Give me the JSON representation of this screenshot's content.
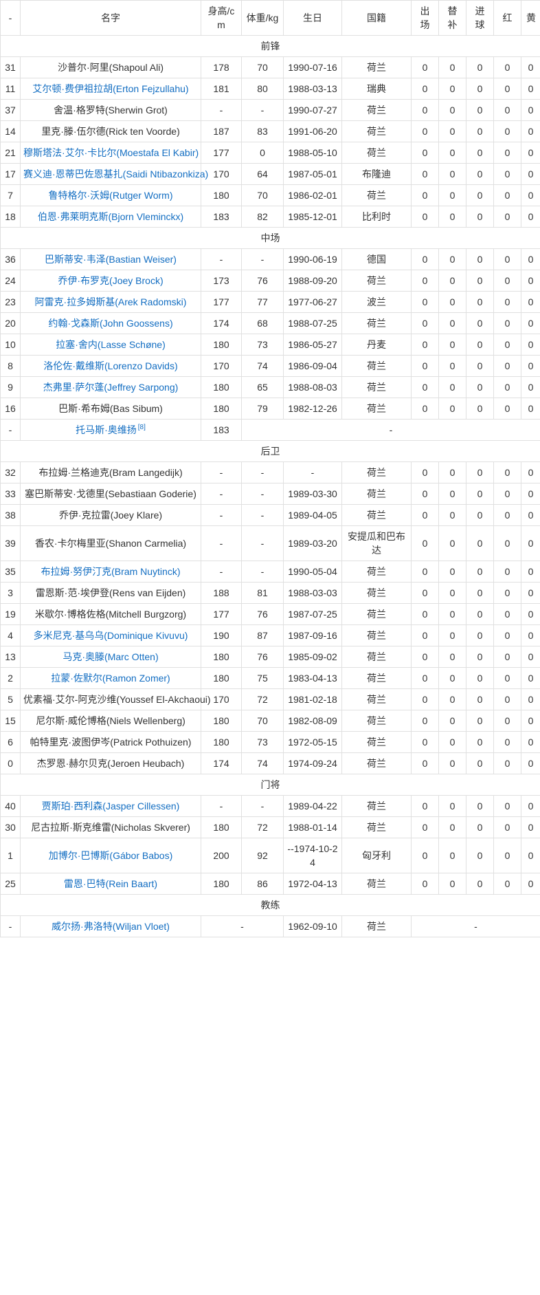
{
  "colors": {
    "link": "#136ec2",
    "text": "#333333",
    "border": "#e0e0e0"
  },
  "table": {
    "columns": [
      "-",
      "名字",
      "身高/cm",
      "体重/kg",
      "生日",
      "国籍",
      "出场",
      "替补",
      "进球",
      "红",
      "黄"
    ],
    "sections": [
      {
        "title": "前锋",
        "players": [
          {
            "num": "31",
            "name": "沙普尔·阿里(Shapoul Ali)",
            "link": false,
            "height": "178",
            "weight": "70",
            "birthday": "1990-07-16",
            "nationality": "荷兰",
            "apps": "0",
            "sub": "0",
            "goals": "0",
            "red": "0",
            "yellow": "0"
          },
          {
            "num": "11",
            "name": "艾尔顿·费伊祖拉胡(Erton Fejzullahu)",
            "link": true,
            "height": "181",
            "weight": "80",
            "birthday": "1988-03-13",
            "nationality": "瑞典",
            "apps": "0",
            "sub": "0",
            "goals": "0",
            "red": "0",
            "yellow": "0"
          },
          {
            "num": "37",
            "name": "舍温·格罗特(Sherwin Grot)",
            "link": false,
            "height": "-",
            "weight": "-",
            "birthday": "1990-07-27",
            "nationality": "荷兰",
            "apps": "0",
            "sub": "0",
            "goals": "0",
            "red": "0",
            "yellow": "0"
          },
          {
            "num": "14",
            "name": "里克·滕·伍尔德(Rick ten Voorde)",
            "link": false,
            "height": "187",
            "weight": "83",
            "birthday": "1991-06-20",
            "nationality": "荷兰",
            "apps": "0",
            "sub": "0",
            "goals": "0",
            "red": "0",
            "yellow": "0"
          },
          {
            "num": "21",
            "name": "穆斯塔法·艾尔·卡比尔(Moestafa El Kabir)",
            "link": true,
            "height": "177",
            "weight": "0",
            "birthday": "1988-05-10",
            "nationality": "荷兰",
            "apps": "0",
            "sub": "0",
            "goals": "0",
            "red": "0",
            "yellow": "0"
          },
          {
            "num": "17",
            "name": "赛义迪·恩蒂巴佐恩基扎(Saidi Ntibazonkiza)",
            "link": true,
            "height": "170",
            "weight": "64",
            "birthday": "1987-05-01",
            "nationality": "布隆迪",
            "apps": "0",
            "sub": "0",
            "goals": "0",
            "red": "0",
            "yellow": "0"
          },
          {
            "num": "7",
            "name": "鲁特格尔·沃姆(Rutger Worm)",
            "link": true,
            "height": "180",
            "weight": "70",
            "birthday": "1986-02-01",
            "nationality": "荷兰",
            "apps": "0",
            "sub": "0",
            "goals": "0",
            "red": "0",
            "yellow": "0"
          },
          {
            "num": "18",
            "name": "伯恩·弗莱明克斯(Bjorn Vleminckx)",
            "link": true,
            "height": "183",
            "weight": "82",
            "birthday": "1985-12-01",
            "nationality": "比利时",
            "apps": "0",
            "sub": "0",
            "goals": "0",
            "red": "0",
            "yellow": "0"
          }
        ]
      },
      {
        "title": "中场",
        "players": [
          {
            "num": "36",
            "name": "巴斯蒂安·韦泽(Bastian Weiser)",
            "link": true,
            "height": "-",
            "weight": "-",
            "birthday": "1990-06-19",
            "nationality": "德国",
            "apps": "0",
            "sub": "0",
            "goals": "0",
            "red": "0",
            "yellow": "0"
          },
          {
            "num": "24",
            "name": "乔伊·布罗克(Joey Brock)",
            "link": true,
            "height": "173",
            "weight": "76",
            "birthday": "1988-09-20",
            "nationality": "荷兰",
            "apps": "0",
            "sub": "0",
            "goals": "0",
            "red": "0",
            "yellow": "0"
          },
          {
            "num": "23",
            "name": "阿雷克·拉多姆斯基(Arek Radomski)",
            "link": true,
            "height": "177",
            "weight": "77",
            "birthday": "1977-06-27",
            "nationality": "波兰",
            "apps": "0",
            "sub": "0",
            "goals": "0",
            "red": "0",
            "yellow": "0"
          },
          {
            "num": "20",
            "name": "约翰·戈森斯(John Goossens)",
            "link": true,
            "height": "174",
            "weight": "68",
            "birthday": "1988-07-25",
            "nationality": "荷兰",
            "apps": "0",
            "sub": "0",
            "goals": "0",
            "red": "0",
            "yellow": "0"
          },
          {
            "num": "10",
            "name": "拉塞·舍内(Lasse Schøne)",
            "link": true,
            "height": "180",
            "weight": "73",
            "birthday": "1986-05-27",
            "nationality": "丹麦",
            "apps": "0",
            "sub": "0",
            "goals": "0",
            "red": "0",
            "yellow": "0"
          },
          {
            "num": "8",
            "name": "洛伦佐·戴维斯(Lorenzo Davids)",
            "link": true,
            "height": "170",
            "weight": "74",
            "birthday": "1986-09-04",
            "nationality": "荷兰",
            "apps": "0",
            "sub": "0",
            "goals": "0",
            "red": "0",
            "yellow": "0"
          },
          {
            "num": "9",
            "name": "杰弗里·萨尔蓬(Jeffrey Sarpong)",
            "link": true,
            "height": "180",
            "weight": "65",
            "birthday": "1988-08-03",
            "nationality": "荷兰",
            "apps": "0",
            "sub": "0",
            "goals": "0",
            "red": "0",
            "yellow": "0"
          },
          {
            "num": "16",
            "name": "巴斯·希布姆(Bas Sibum)",
            "link": false,
            "height": "180",
            "weight": "79",
            "birthday": "1982-12-26",
            "nationality": "荷兰",
            "apps": "0",
            "sub": "0",
            "goals": "0",
            "red": "0",
            "yellow": "0"
          },
          {
            "num": "-",
            "name": "托马斯·奥维扬",
            "link": true,
            "ref": "[8]",
            "layout": "merge-after-height",
            "height": "183",
            "rest": "-"
          }
        ]
      },
      {
        "title": "后卫",
        "players": [
          {
            "num": "32",
            "name": "布拉姆·兰格迪克(Bram Langedijk)",
            "link": false,
            "height": "-",
            "weight": "-",
            "birthday": "-",
            "nationality": "荷兰",
            "apps": "0",
            "sub": "0",
            "goals": "0",
            "red": "0",
            "yellow": "0"
          },
          {
            "num": "33",
            "name": "塞巴斯蒂安·戈德里(Sebastiaan Goderie)",
            "link": false,
            "height": "-",
            "weight": "-",
            "birthday": "1989-03-30",
            "nationality": "荷兰",
            "apps": "0",
            "sub": "0",
            "goals": "0",
            "red": "0",
            "yellow": "0"
          },
          {
            "num": "38",
            "name": "乔伊·克拉雷(Joey Klare)",
            "link": false,
            "height": "-",
            "weight": "-",
            "birthday": "1989-04-05",
            "nationality": "荷兰",
            "apps": "0",
            "sub": "0",
            "goals": "0",
            "red": "0",
            "yellow": "0"
          },
          {
            "num": "39",
            "name": "香农·卡尔梅里亚(Shanon Carmelia)",
            "link": false,
            "height": "-",
            "weight": "-",
            "birthday": "1989-03-20",
            "nationality": "安提瓜和巴布达",
            "apps": "0",
            "sub": "0",
            "goals": "0",
            "red": "0",
            "yellow": "0"
          },
          {
            "num": "35",
            "name": "布拉姆·努伊汀克(Bram Nuytinck)",
            "link": true,
            "height": "-",
            "weight": "-",
            "birthday": "1990-05-04",
            "nationality": "荷兰",
            "apps": "0",
            "sub": "0",
            "goals": "0",
            "red": "0",
            "yellow": "0"
          },
          {
            "num": "3",
            "name": "雷恩斯·范·埃伊登(Rens van Eijden)",
            "link": false,
            "height": "188",
            "weight": "81",
            "birthday": "1988-03-03",
            "nationality": "荷兰",
            "apps": "0",
            "sub": "0",
            "goals": "0",
            "red": "0",
            "yellow": "0"
          },
          {
            "num": "19",
            "name": "米歇尔·博格佐格(Mitchell Burgzorg)",
            "link": false,
            "height": "177",
            "weight": "76",
            "birthday": "1987-07-25",
            "nationality": "荷兰",
            "apps": "0",
            "sub": "0",
            "goals": "0",
            "red": "0",
            "yellow": "0"
          },
          {
            "num": "4",
            "name": "多米尼克·基乌乌(Dominique Kivuvu)",
            "link": true,
            "height": "190",
            "weight": "87",
            "birthday": "1987-09-16",
            "nationality": "荷兰",
            "apps": "0",
            "sub": "0",
            "goals": "0",
            "red": "0",
            "yellow": "0"
          },
          {
            "num": "13",
            "name": "马克·奥滕(Marc Otten)",
            "link": true,
            "height": "180",
            "weight": "76",
            "birthday": "1985-09-02",
            "nationality": "荷兰",
            "apps": "0",
            "sub": "0",
            "goals": "0",
            "red": "0",
            "yellow": "0"
          },
          {
            "num": "2",
            "name": "拉蒙·佐默尔(Ramon Zomer)",
            "link": true,
            "height": "180",
            "weight": "75",
            "birthday": "1983-04-13",
            "nationality": "荷兰",
            "apps": "0",
            "sub": "0",
            "goals": "0",
            "red": "0",
            "yellow": "0"
          },
          {
            "num": "5",
            "name": "优素福·艾尔-阿克沙维(Youssef El-Akchaoui)",
            "link": false,
            "height": "170",
            "weight": "72",
            "birthday": "1981-02-18",
            "nationality": "荷兰",
            "apps": "0",
            "sub": "0",
            "goals": "0",
            "red": "0",
            "yellow": "0"
          },
          {
            "num": "15",
            "name": "尼尔斯·威伦博格(Niels Wellenberg)",
            "link": false,
            "height": "180",
            "weight": "70",
            "birthday": "1982-08-09",
            "nationality": "荷兰",
            "apps": "0",
            "sub": "0",
            "goals": "0",
            "red": "0",
            "yellow": "0"
          },
          {
            "num": "6",
            "name": "帕特里克·波图伊岑(Patrick Pothuizen)",
            "link": false,
            "height": "180",
            "weight": "73",
            "birthday": "1972-05-15",
            "nationality": "荷兰",
            "apps": "0",
            "sub": "0",
            "goals": "0",
            "red": "0",
            "yellow": "0"
          },
          {
            "num": "0",
            "name": "杰罗恩·赫尔贝克(Jeroen Heubach)",
            "link": false,
            "height": "174",
            "weight": "74",
            "birthday": "1974-09-24",
            "nationality": "荷兰",
            "apps": "0",
            "sub": "0",
            "goals": "0",
            "red": "0",
            "yellow": "0"
          }
        ]
      },
      {
        "title": "门将",
        "players": [
          {
            "num": "40",
            "name": "贾斯珀·西利森(Jasper Cillessen)",
            "link": true,
            "height": "-",
            "weight": "-",
            "birthday": "1989-04-22",
            "nationality": "荷兰",
            "apps": "0",
            "sub": "0",
            "goals": "0",
            "red": "0",
            "yellow": "0"
          },
          {
            "num": "30",
            "name": "尼古拉斯·斯克维雷(Nicholas Skverer)",
            "link": false,
            "height": "180",
            "weight": "72",
            "birthday": "1988-01-14",
            "nationality": "荷兰",
            "apps": "0",
            "sub": "0",
            "goals": "0",
            "red": "0",
            "yellow": "0"
          },
          {
            "num": "1",
            "name": "加博尔·巴博斯(Gábor Babos)",
            "link": true,
            "height": "200",
            "weight": "92",
            "birthday": "--1974-10-24",
            "nationality": "匈牙利",
            "apps": "0",
            "sub": "0",
            "goals": "0",
            "red": "0",
            "yellow": "0"
          },
          {
            "num": "25",
            "name": "雷恩·巴特(Rein Baart)",
            "link": true,
            "height": "180",
            "weight": "86",
            "birthday": "1972-04-13",
            "nationality": "荷兰",
            "apps": "0",
            "sub": "0",
            "goals": "0",
            "red": "0",
            "yellow": "0"
          }
        ]
      },
      {
        "title": "教练",
        "players": [
          {
            "num": "-",
            "name": "威尔扬·弗洛特(Wiljan Vloet)",
            "link": true,
            "layout": "coach",
            "height_weight": "-",
            "birthday": "1962-09-10",
            "nationality": "荷兰",
            "stats": "-"
          }
        ]
      }
    ]
  }
}
